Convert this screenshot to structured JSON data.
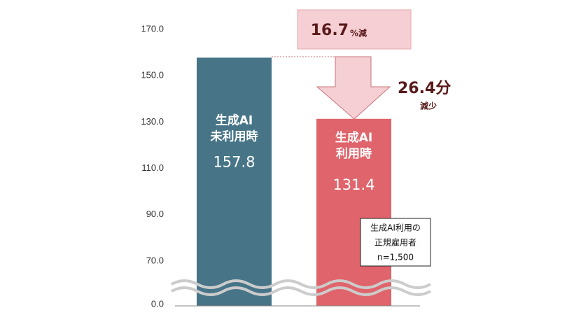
{
  "chart_data": {
    "type": "bar",
    "categories": [
      [
        "生成AI",
        "未利用時"
      ],
      [
        "生成AI",
        "利用時"
      ]
    ],
    "values": [
      157.8,
      131.4
    ],
    "colors": [
      "#477587",
      "#e0646b"
    ],
    "ylim": [
      0,
      170
    ],
    "yticks": [
      {
        "value": 0,
        "label": "0.0"
      },
      {
        "value": 70,
        "label": "70.0"
      },
      {
        "value": 90,
        "label": "90.0"
      },
      {
        "value": 110,
        "label": "110.0"
      },
      {
        "value": 130,
        "label": "130.0"
      },
      {
        "value": 150,
        "label": "150.0"
      },
      {
        "value": 170,
        "label": "170.0"
      }
    ],
    "annotations": {
      "reduction_pct": "16.7",
      "reduction_pct_unit": "%減",
      "reduction_min": "26.4分",
      "reduction_word": "減少"
    },
    "note": [
      "生成AI利用の",
      "正規雇用者",
      "n=1,500"
    ]
  }
}
